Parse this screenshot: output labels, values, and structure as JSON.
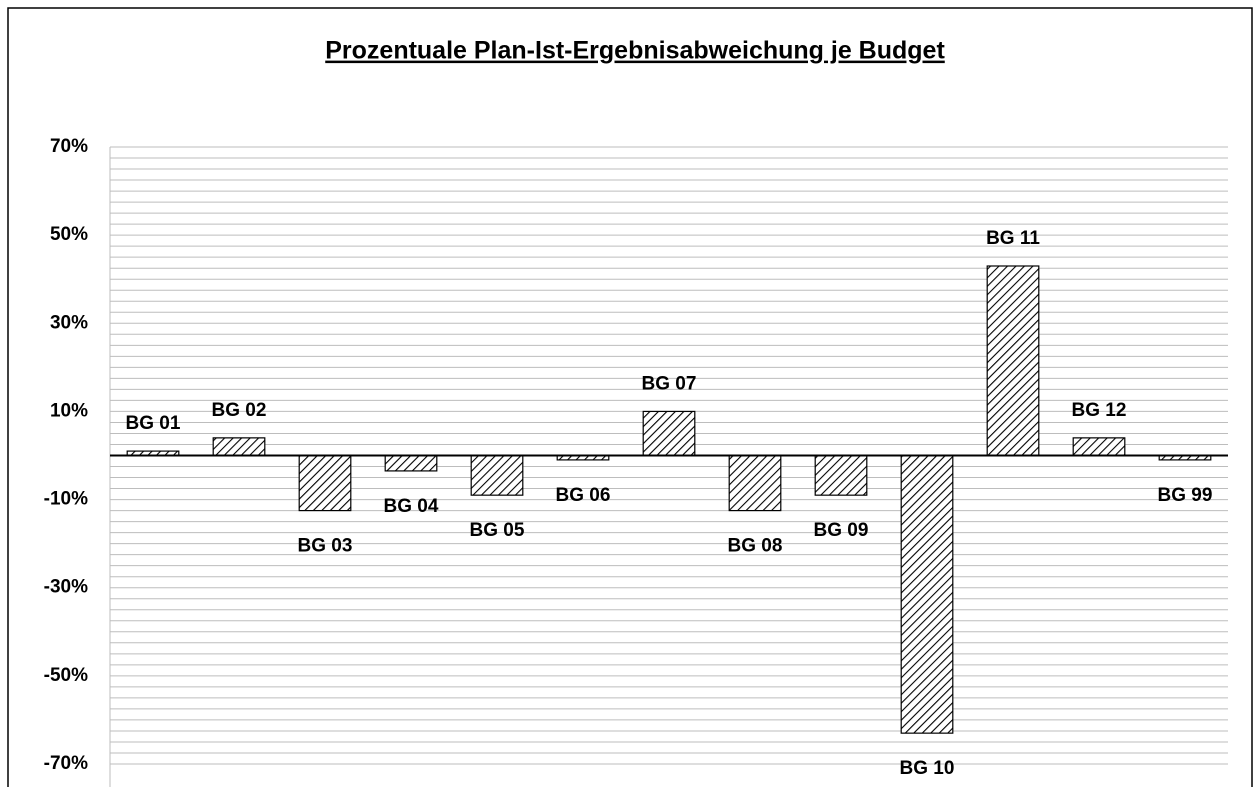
{
  "chart_data": {
    "type": "bar",
    "title": "Prozentuale Plan-Ist-Ergebnisabweichung je Budget",
    "categories": [
      "BG 01",
      "BG 02",
      "BG 03",
      "BG 04",
      "BG 05",
      "BG 06",
      "BG 07",
      "BG 08",
      "BG 09",
      "BG 10",
      "BG 11",
      "BG 12",
      "BG 99"
    ],
    "values": [
      1,
      4,
      -12.5,
      -3.5,
      -9,
      -1,
      10,
      -12.5,
      -9,
      -63,
      43,
      4,
      -1
    ],
    "color": "#000000",
    "ylim": [
      -70,
      70
    ],
    "yticks": [
      {
        "value": 70,
        "label": "70%"
      },
      {
        "value": 50,
        "label": "50%"
      },
      {
        "value": 30,
        "label": "30%"
      },
      {
        "value": 10,
        "label": "10%"
      },
      {
        "value": -10,
        "label": "-10%"
      },
      {
        "value": -30,
        "label": "-30%"
      },
      {
        "value": -50,
        "label": "-50%"
      },
      {
        "value": -70,
        "label": "-70%"
      }
    ],
    "grid_lines": [
      -70,
      -67.5,
      -65,
      -62.5,
      -60,
      -57.5,
      -55,
      -52.5,
      -50,
      -47.5,
      -45,
      -42.5,
      -40,
      -37.5,
      -35,
      -32.5,
      -30,
      -27.5,
      -25,
      -22.5,
      -20,
      -17.5,
      -15,
      -12.5,
      -10,
      -7.5,
      -5,
      -2.5,
      2.5,
      5,
      7.5,
      10,
      12.5,
      15,
      17.5,
      20,
      22.5,
      25,
      27.5,
      30,
      32.5,
      35,
      37.5,
      40,
      42.5,
      45,
      47.5,
      50,
      52.5,
      55,
      57.5,
      60,
      62.5,
      65,
      67.5,
      70
    ],
    "grid": true
  }
}
